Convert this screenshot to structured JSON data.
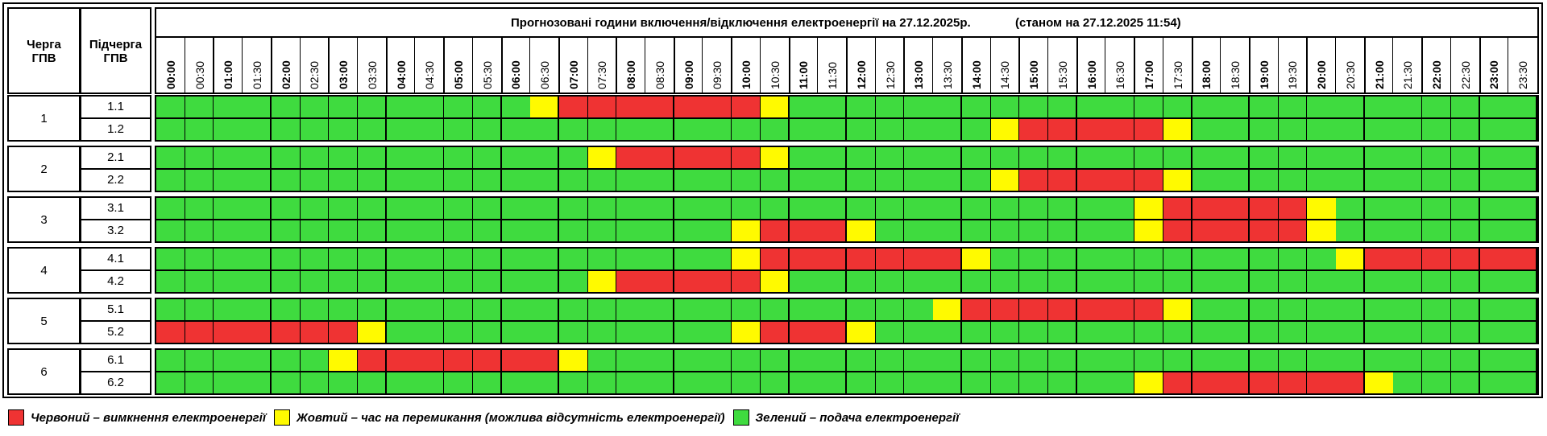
{
  "header": {
    "queue_label": "Черга ГПВ",
    "subqueue_label": "Підчерга ГПВ",
    "title": "Прогнозовані години включення/відключення електроенергії на 27.12.2025р.",
    "status": "(станом на 27.12.2025 11:54)"
  },
  "times": [
    "00:00",
    "00:30",
    "01:00",
    "01:30",
    "02:00",
    "02:30",
    "03:00",
    "03:30",
    "04:00",
    "04:30",
    "05:00",
    "05:30",
    "06:00",
    "06:30",
    "07:00",
    "07:30",
    "08:00",
    "08:30",
    "09:00",
    "09:30",
    "10:00",
    "10:30",
    "11:00",
    "11:30",
    "12:00",
    "12:30",
    "13:00",
    "13:30",
    "14:00",
    "14:30",
    "15:00",
    "15:30",
    "16:00",
    "16:30",
    "17:00",
    "17:30",
    "18:00",
    "18:30",
    "19:00",
    "19:30",
    "20:00",
    "20:30",
    "21:00",
    "21:30",
    "22:00",
    "22:30",
    "23:00",
    "23:30"
  ],
  "colors": {
    "R": "#ef3333",
    "Y": "#fffa00",
    "G": "#3fdb3f"
  },
  "queues": [
    {
      "label": "1",
      "subqueues": [
        {
          "label": "1.1",
          "slots": "GGGGGGGGGGGGGYRRRRRRRYGGGGGGGGGGGGGGGGGGGGGGGGGG"
        },
        {
          "label": "1.2",
          "slots": "GGGGGGGGGGGGGGGGGGGGGGGGGGGGGYRRRRRYGGGGGGGGGGGG"
        }
      ]
    },
    {
      "label": "2",
      "subqueues": [
        {
          "label": "2.1",
          "slots": "GGGGGGGGGGGGGGGYRRRRRYGGGGGGGGGGGGGGGGGGGGGGGGGG"
        },
        {
          "label": "2.2",
          "slots": "GGGGGGGGGGGGGGGGGGGGGGGGGGGGGYRRRRRYGGGGGGGGGGGG"
        }
      ]
    },
    {
      "label": "3",
      "subqueues": [
        {
          "label": "3.1",
          "slots": "GGGGGGGGGGGGGGGGGGGGGGGGGGGGGGGGGGYRRRRRYGGGGGGG"
        },
        {
          "label": "3.2",
          "slots": "GGGGGGGGGGGGGGGGGGGGYRRRYGGGGGGGGGYRRRRRYGGGGGGG"
        }
      ]
    },
    {
      "label": "4",
      "subqueues": [
        {
          "label": "4.1",
          "slots": "GGGGGGGGGGGGGGGGGGGGYRRRRRRRYGGGGGGGGGGGGYRRRRRR"
        },
        {
          "label": "4.2",
          "slots": "GGGGGGGGGGGGGGGYRRRRRYGGGGGGGGGGGGGGGGGGGGGGGGGG"
        }
      ]
    },
    {
      "label": "5",
      "subqueues": [
        {
          "label": "5.1",
          "slots": "GGGGGGGGGGGGGGGGGGGGGGGGGGGYRRRRRRRYGGGGGGGGGGGG"
        },
        {
          "label": "5.2",
          "slots": "RRRRRRRYGGGGGGGGGGGGYRRRYGGGGGGGGGGGGGGGGGGGGGGG"
        }
      ]
    },
    {
      "label": "6",
      "subqueues": [
        {
          "label": "6.1",
          "slots": "GGGGGGYRRRRRRRYGGGGGGGGGGGGGGGGGGGGGGGGGGGGGGGGG"
        },
        {
          "label": "6.2",
          "slots": "GGGGGGGGGGGGGGGGGGGGGGGGGGGGGGGGGGYRRRRRRRYGGGGG"
        }
      ]
    }
  ],
  "legend": [
    {
      "key": "R",
      "text": "Червоний – вимкнення електроенергії"
    },
    {
      "key": "Y",
      "text": "Жовтий – час на перемикання (можлива відсутність електроенергії)"
    },
    {
      "key": "G",
      "text": "Зелений – подача електроенергії"
    }
  ]
}
